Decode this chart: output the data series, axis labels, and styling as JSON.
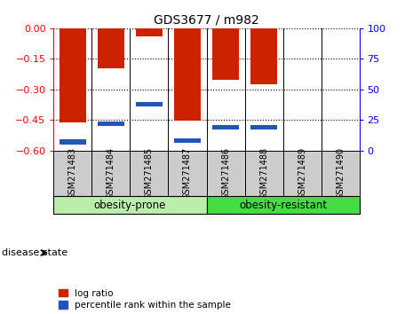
{
  "title": "GDS3677 / m982",
  "samples": [
    "GSM271483",
    "GSM271484",
    "GSM271485",
    "GSM271487",
    "GSM271486",
    "GSM271488",
    "GSM271489",
    "GSM271490"
  ],
  "log_ratio": [
    -0.46,
    -0.195,
    -0.04,
    -0.455,
    -0.255,
    -0.275,
    0.0,
    0.0
  ],
  "percentile_rank": [
    7,
    22,
    38,
    8,
    19,
    19,
    0,
    0
  ],
  "ylim_left": [
    -0.6,
    0.0
  ],
  "yticks_left": [
    -0.6,
    -0.45,
    -0.3,
    -0.15,
    0.0
  ],
  "ylim_right": [
    0,
    100
  ],
  "yticks_right": [
    0,
    25,
    50,
    75,
    100
  ],
  "bar_color": "#cc2200",
  "blue_color": "#2255bb",
  "group1_label": "obesity-prone",
  "group1_color": "#bbeeaa",
  "group2_label": "obesity-resistant",
  "group2_color": "#44dd44",
  "group1_count": 4,
  "group2_count": 4,
  "disease_state_label": "disease state",
  "legend_ratio_label": "log ratio",
  "legend_pct_label": "percentile rank within the sample",
  "bg_color": "#ffffff",
  "plot_bg": "#ffffff",
  "tick_bg": "#cccccc",
  "bar_width": 0.7
}
